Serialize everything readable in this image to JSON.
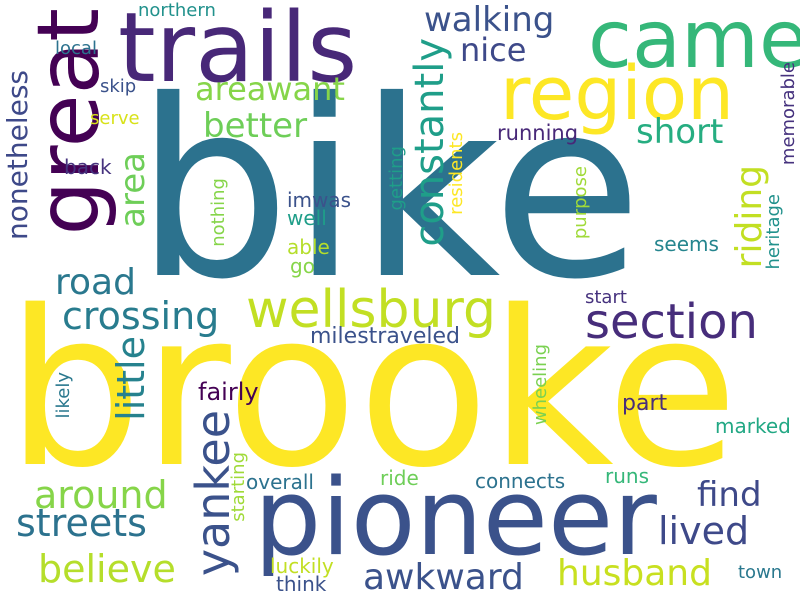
{
  "words": [
    {
      "text": "bike",
      "color": "#2c728e"
    },
    {
      "text": "brooke",
      "color": "#fde725"
    },
    {
      "text": "pioneer",
      "color": "#3b528b"
    },
    {
      "text": "trails",
      "color": "#482878"
    },
    {
      "text": "came",
      "color": "#35b779"
    },
    {
      "text": "great",
      "color": "#440154"
    },
    {
      "text": "region",
      "color": "#fde725"
    },
    {
      "text": "wellsburg",
      "color": "#c2df23"
    },
    {
      "text": "section",
      "color": "#472d7b"
    },
    {
      "text": "yankee",
      "color": "#3b528b"
    },
    {
      "text": "walking",
      "color": "#3b528b"
    },
    {
      "text": "nice",
      "color": "#3e4989"
    },
    {
      "text": "areawant",
      "color": "#86d549"
    },
    {
      "text": "better",
      "color": "#6ece58"
    },
    {
      "text": "constantly",
      "color": "#1f9e89"
    },
    {
      "text": "short",
      "color": "#26ad81"
    },
    {
      "text": "riding",
      "color": "#c2df23"
    },
    {
      "text": "area",
      "color": "#6ece58"
    },
    {
      "text": "nonetheless",
      "color": "#3e4989"
    },
    {
      "text": "road",
      "color": "#2a788e"
    },
    {
      "text": "crossing",
      "color": "#287c8e"
    },
    {
      "text": "little",
      "color": "#26828e"
    },
    {
      "text": "around",
      "color": "#86d549"
    },
    {
      "text": "streets",
      "color": "#2c728e"
    },
    {
      "text": "believe",
      "color": "#b5de2b"
    },
    {
      "text": "awkward",
      "color": "#3b528b"
    },
    {
      "text": "husband",
      "color": "#c8e020"
    },
    {
      "text": "find",
      "color": "#3e4989"
    },
    {
      "text": "lived",
      "color": "#3e4989"
    },
    {
      "text": "running",
      "color": "#482878"
    },
    {
      "text": "memorable",
      "color": "#46327e"
    },
    {
      "text": "heritage",
      "color": "#21918c"
    },
    {
      "text": "seems",
      "color": "#25858e"
    },
    {
      "text": "start",
      "color": "#46327e"
    },
    {
      "text": "milestraveled",
      "color": "#3b528b"
    },
    {
      "text": "fairly",
      "color": "#440154"
    },
    {
      "text": "part",
      "color": "#472d7b"
    },
    {
      "text": "marked",
      "color": "#22a884"
    },
    {
      "text": "overall",
      "color": "#2c728e"
    },
    {
      "text": "ride",
      "color": "#6ece58"
    },
    {
      "text": "connects",
      "color": "#2c728e"
    },
    {
      "text": "runs",
      "color": "#35b779"
    },
    {
      "text": "town",
      "color": "#2a788e"
    },
    {
      "text": "luckily",
      "color": "#c2df23"
    },
    {
      "text": "think",
      "color": "#3b528b"
    },
    {
      "text": "starting",
      "color": "#a0da39"
    },
    {
      "text": "wheeling",
      "color": "#7ad151"
    },
    {
      "text": "likely",
      "color": "#2a788e"
    },
    {
      "text": "purpose",
      "color": "#a0da39"
    },
    {
      "text": "getting",
      "color": "#1f9e89"
    },
    {
      "text": "residents",
      "color": "#fde725"
    },
    {
      "text": "imwas",
      "color": "#3b528b"
    },
    {
      "text": "well",
      "color": "#1f9e89"
    },
    {
      "text": "able",
      "color": "#b5de2b"
    },
    {
      "text": "go",
      "color": "#86d549"
    },
    {
      "text": "nothing",
      "color": "#86d549"
    },
    {
      "text": "northern",
      "color": "#21918c"
    },
    {
      "text": "local",
      "color": "#2c728e"
    },
    {
      "text": "skip",
      "color": "#3b528b"
    },
    {
      "text": "serve",
      "color": "#d8e219"
    },
    {
      "text": "back",
      "color": "#46327e"
    }
  ]
}
